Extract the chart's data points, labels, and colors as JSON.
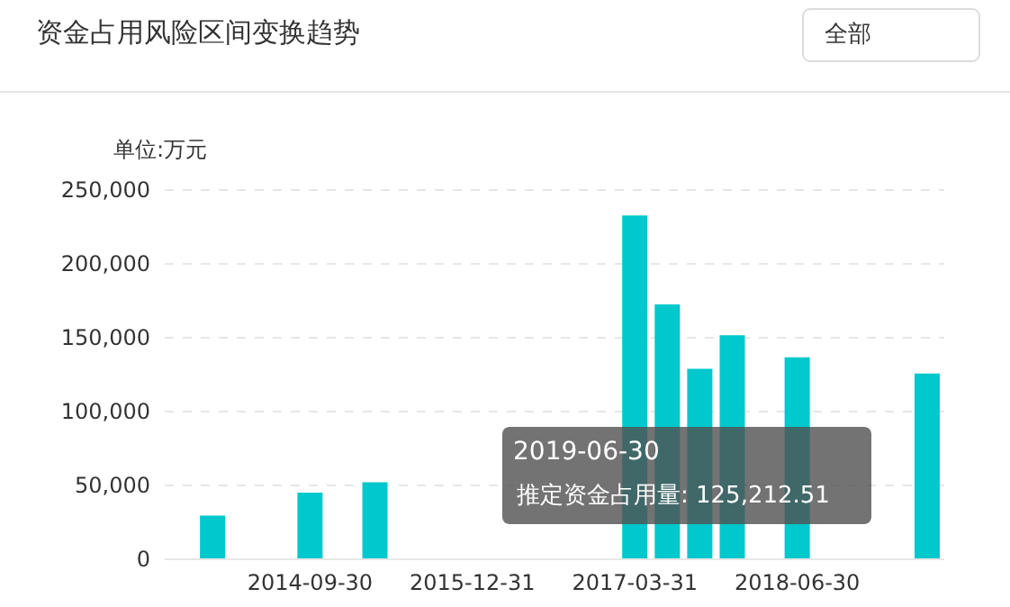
{
  "chart_data": {
    "type": "bar",
    "title": "资金占用风险区间变换趋势",
    "ylabel": "单位:万元",
    "annotations": [
      "全部",
      "2019-06-30",
      ":"
    ],
    "categories": [
      null,
      null,
      null,
      null,
      "2014-09-30",
      null,
      null,
      null,
      null,
      "2015-12-31",
      null,
      null,
      null,
      null,
      "2017-03-31",
      null,
      null,
      null,
      null,
      "2018-06-30",
      null,
      null,
      null,
      null
    ],
    "series": [
      {
        "name": "推定资金占用量",
        "color": "#00c8cc",
        "values": [
          null,
          29000,
          null,
          null,
          44500,
          null,
          51500,
          null,
          null,
          null,
          null,
          null,
          null,
          null,
          232100,
          171900,
          128300,
          151000,
          null,
          136100,
          null,
          null,
          null,
          125212.51
        ],
        "value_labels": [
          null,
          null,
          null,
          null,
          null,
          null,
          null,
          null,
          null,
          null,
          null,
          null,
          null,
          null,
          null,
          null,
          null,
          null,
          null,
          null,
          null,
          null,
          null,
          "125,212.51"
        ]
      }
    ],
    "ylim": [
      0,
      250000
    ],
    "yticks": [
      0,
      {
        "value": 50000,
        "label": "50,000"
      },
      {
        "value": 100000,
        "label": "100,000"
      },
      {
        "value": 150000,
        "label": "150,000"
      },
      {
        "value": 200000,
        "label": "200,000"
      },
      {
        "value": 250000,
        "label": "250,000"
      }
    ],
    "grid": "y",
    "legend": false
  }
}
